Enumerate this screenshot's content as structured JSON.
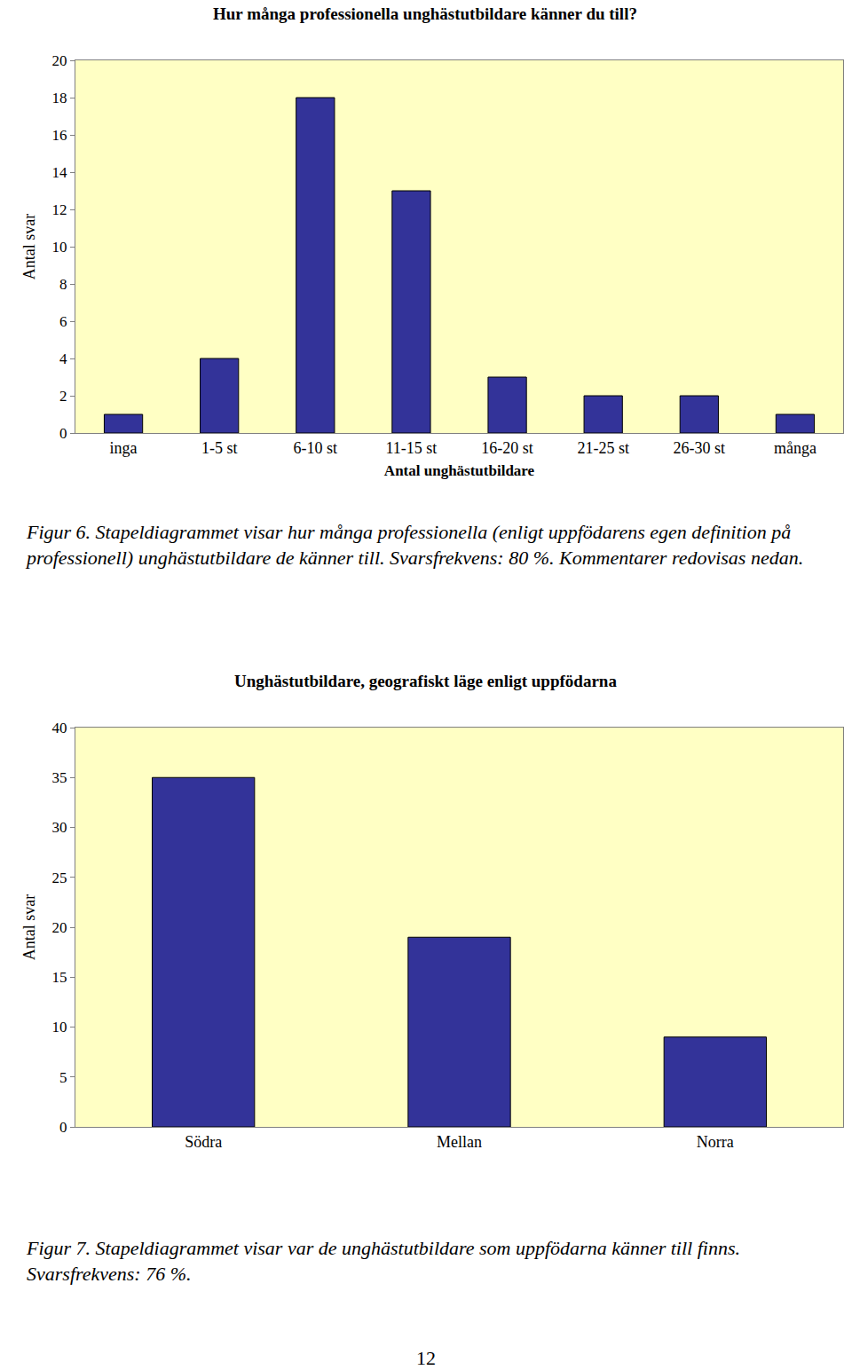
{
  "chart_data": [
    {
      "type": "bar",
      "title": "Hur många professionella unghästutbildare känner du till?",
      "x_label": "Antal unghästutbildare",
      "y_label": "Antal svar",
      "categories": [
        "inga",
        "1-5 st",
        "6-10 st",
        "11-15 st",
        "16-20 st",
        "21-25 st",
        "26-30 st",
        "många"
      ],
      "values": [
        1,
        4,
        18,
        13,
        3,
        2,
        2,
        1
      ],
      "color": "#333399",
      "ylim": [
        0,
        20
      ],
      "yticks": [
        0,
        2,
        4,
        6,
        8,
        10,
        12,
        14,
        16,
        18,
        20
      ],
      "grid": false
    },
    {
      "type": "bar",
      "title": "Unghästutbildare, geografiskt läge enligt uppfödarna",
      "y_label": "Antal svar",
      "categories": [
        "Södra",
        "Mellan",
        "Norra"
      ],
      "values": [
        35,
        19,
        9
      ],
      "color": "#333399",
      "ylim": [
        0,
        40
      ],
      "yticks": [
        0,
        5,
        10,
        15,
        20,
        25,
        30,
        35,
        40
      ],
      "grid": false
    }
  ],
  "captions": [
    "Figur 6. Stapeldiagrammet visar hur många professionella (enligt uppfödarens egen definition på professionell) unghästutbildare de känner till. Svarsfrekvens: 80 %. Kommentarer redovisas nedan.",
    "Figur 7. Stapeldiagrammet visar var de unghästutbildare som uppfödarna känner till finns. Svarsfrekvens: 76 %."
  ],
  "page_number": 12
}
